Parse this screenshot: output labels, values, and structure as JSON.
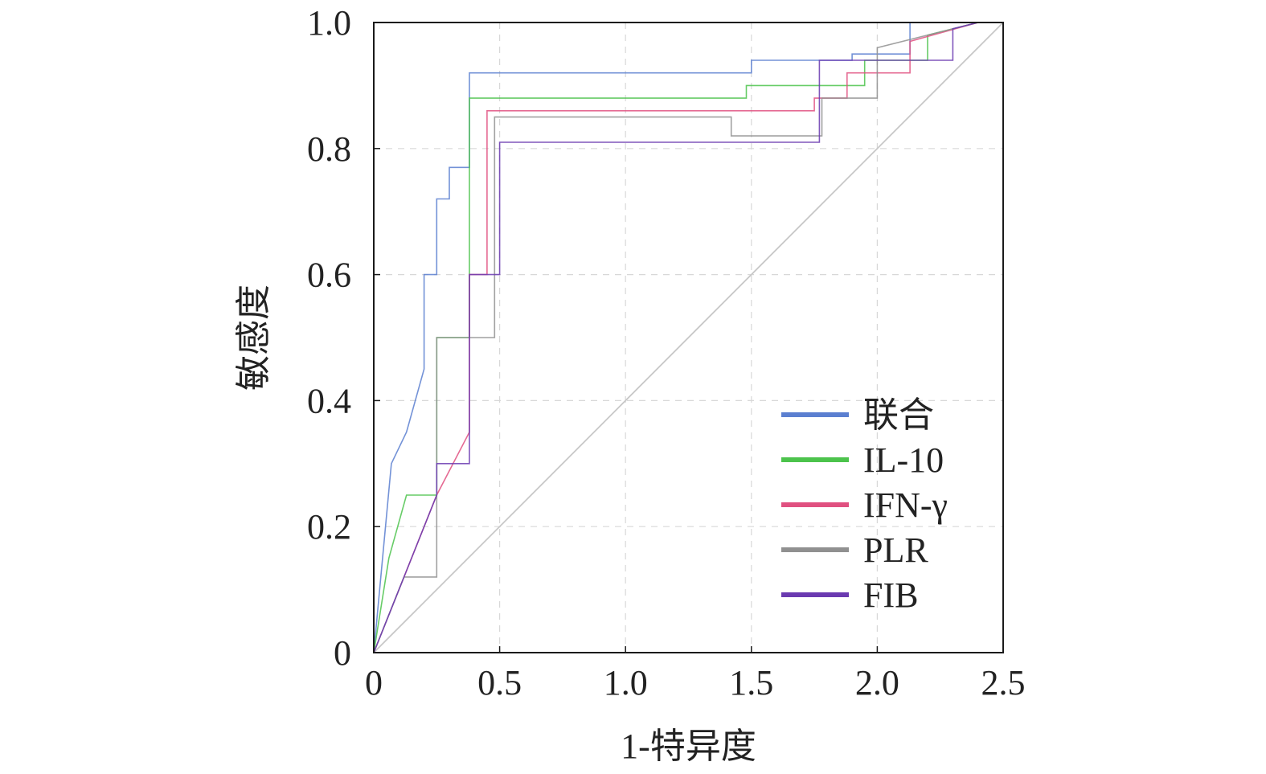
{
  "chart_data": {
    "type": "line",
    "xlabel": "1-特异度",
    "ylabel": "敏感度",
    "xlim": [
      0,
      2.5
    ],
    "ylim": [
      0,
      1.0
    ],
    "x_ticks": [
      0,
      0.5,
      1.0,
      1.5,
      2.0,
      2.5
    ],
    "x_tick_labels": [
      "0",
      "0.5",
      "1.0",
      "1.5",
      "2.0",
      "2.5"
    ],
    "y_ticks": [
      0,
      0.2,
      0.4,
      0.6,
      0.8,
      1.0
    ],
    "y_tick_labels": [
      "0",
      "0.2",
      "0.4",
      "0.6",
      "0.8",
      "1.0"
    ],
    "grid": true,
    "legend_position": "bottom-right",
    "reference_line": {
      "x": [
        0,
        2.5
      ],
      "y": [
        0,
        1.0
      ],
      "color": "#c8c8c8"
    },
    "series": [
      {
        "name": "联合",
        "color": "#5b7fd0",
        "x": [
          0,
          0.07,
          0.13,
          0.13,
          0.2,
          0.2,
          0.25,
          0.25,
          0.3,
          0.3,
          0.38,
          0.38,
          1.5,
          1.5,
          1.9,
          1.9,
          2.13,
          2.13,
          2.4
        ],
        "y": [
          0,
          0.3,
          0.35,
          0.35,
          0.45,
          0.6,
          0.6,
          0.72,
          0.72,
          0.77,
          0.77,
          0.92,
          0.92,
          0.94,
          0.94,
          0.95,
          0.95,
          1.0,
          1.0
        ]
      },
      {
        "name": "IL-10",
        "color": "#4cc34c",
        "x": [
          0,
          0.06,
          0.13,
          0.13,
          0.25,
          0.25,
          0.38,
          0.38,
          1.48,
          1.48,
          1.95,
          1.95,
          2.2,
          2.2,
          2.4
        ],
        "y": [
          0,
          0.15,
          0.25,
          0.25,
          0.25,
          0.5,
          0.5,
          0.88,
          0.88,
          0.9,
          0.9,
          0.94,
          0.94,
          0.98,
          1.0
        ]
      },
      {
        "name": "IFN-γ",
        "color": "#e05080",
        "x": [
          0,
          0.12,
          0.25,
          0.38,
          0.38,
          0.45,
          0.45,
          1.75,
          1.75,
          1.88,
          1.88,
          2.13,
          2.13,
          2.4
        ],
        "y": [
          0,
          0.12,
          0.25,
          0.35,
          0.6,
          0.6,
          0.86,
          0.86,
          0.88,
          0.88,
          0.92,
          0.92,
          0.97,
          1.0
        ]
      },
      {
        "name": "PLR",
        "color": "#909090",
        "x": [
          0,
          0.12,
          0.25,
          0.25,
          0.48,
          0.48,
          1.42,
          1.42,
          1.78,
          1.78,
          2.0,
          2.0,
          2.4
        ],
        "y": [
          0,
          0.12,
          0.12,
          0.5,
          0.5,
          0.85,
          0.85,
          0.82,
          0.82,
          0.88,
          0.88,
          0.96,
          1.0
        ]
      },
      {
        "name": "FIB",
        "color": "#6a3ab0",
        "x": [
          0,
          0.25,
          0.25,
          0.38,
          0.38,
          0.5,
          0.5,
          1.77,
          1.77,
          2.3,
          2.3,
          2.4
        ],
        "y": [
          0,
          0.25,
          0.3,
          0.3,
          0.6,
          0.6,
          0.81,
          0.81,
          0.94,
          0.94,
          0.99,
          1.0
        ]
      }
    ]
  }
}
